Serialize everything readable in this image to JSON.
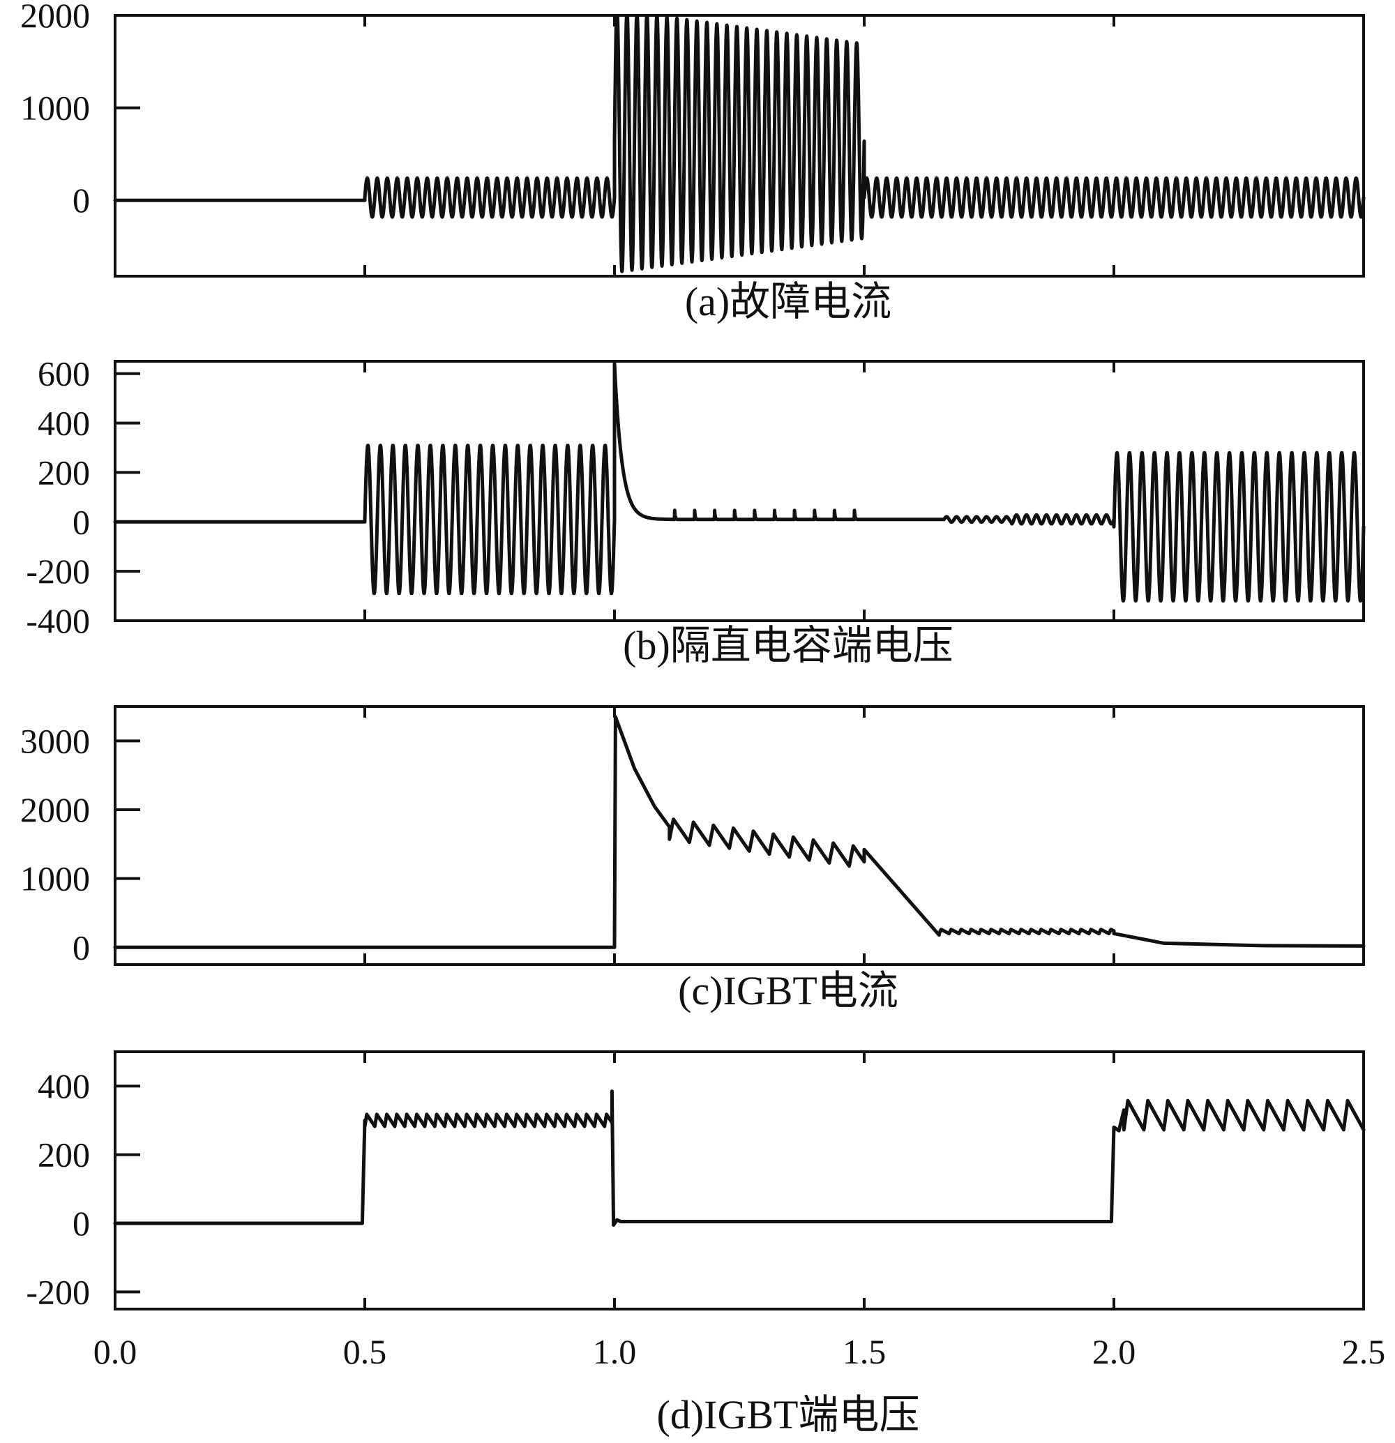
{
  "figure": {
    "xlim": [
      0.0,
      2.5
    ],
    "x_tick_labels": [
      "0.0",
      "0.5",
      "1.0",
      "1.5",
      "2.0",
      "2.5"
    ],
    "x_ticks": [
      0.0,
      0.5,
      1.0,
      1.5,
      2.0,
      2.5
    ]
  },
  "chart_data": [
    {
      "type": "line",
      "title": "(a)故障电流",
      "xlabel": "",
      "ylabel": "",
      "ylim": [
        -820,
        2000
      ],
      "y_ticks": [
        0,
        1000,
        2000
      ],
      "y_tick_labels": [
        "0",
        "1000",
        "2000"
      ],
      "series": [
        {
          "name": "故障电流",
          "segments": [
            {
              "type": "const",
              "t0": 0.0,
              "t1": 0.5,
              "value": 0
            },
            {
              "type": "osc",
              "t0": 0.5,
              "t1": 1.0,
              "freq": 50,
              "offset": 30,
              "amp0": 210,
              "amp1": 210
            },
            {
              "type": "osc",
              "t0": 1.0,
              "t1": 1.5,
              "freq": 50,
              "offset": 640,
              "amp0": 1420,
              "amp1": 1050
            },
            {
              "type": "osc",
              "t0": 1.5,
              "t1": 2.5,
              "freq": 50,
              "offset": 30,
              "amp0": 210,
              "amp1": 210
            }
          ]
        }
      ]
    },
    {
      "type": "line",
      "title": "(b)隔直电容端电压",
      "xlabel": "",
      "ylabel": "",
      "ylim": [
        -400,
        650
      ],
      "y_ticks": [
        -400,
        -200,
        0,
        200,
        400,
        600
      ],
      "y_tick_labels": [
        "-400",
        "-200",
        "0",
        "200",
        "400",
        "600"
      ],
      "series": [
        {
          "name": "隔直电容端电压",
          "segments": [
            {
              "type": "const",
              "t0": 0.0,
              "t1": 0.5,
              "value": 0
            },
            {
              "type": "osc",
              "t0": 0.5,
              "t1": 1.0,
              "freq": 40,
              "offset": 10,
              "amp0": 300,
              "amp1": 300
            },
            {
              "type": "decay",
              "t0": 1.0,
              "t1": 1.5,
              "from": 640,
              "to": 10,
              "tau": 0.015,
              "spike_every": 0.04,
              "spike_start": 0.12,
              "spike_height": 55
            },
            {
              "type": "ripple",
              "t0": 1.5,
              "t1": 2.0,
              "base": 10,
              "ripple_from": 1.66,
              "ripple_amp": 18,
              "freq": 50
            },
            {
              "type": "osc",
              "t0": 2.0,
              "t1": 2.5,
              "freq": 40,
              "offset": -20,
              "amp0": 300,
              "amp1": 300
            }
          ]
        }
      ]
    },
    {
      "type": "line",
      "title": "(c)IGBT电流",
      "xlabel": "",
      "ylabel": "",
      "ylim": [
        -250,
        3500
      ],
      "y_ticks": [
        0,
        1000,
        2000,
        3000
      ],
      "y_tick_labels": [
        "0",
        "1000",
        "2000",
        "3000"
      ],
      "series": [
        {
          "name": "IGBT电流",
          "segments": [
            {
              "type": "const",
              "t0": 0.0,
              "t1": 1.0,
              "value": 0
            },
            {
              "type": "points",
              "values": [
                [
                  1.0,
                  0
                ],
                [
                  1.002,
                  3350
                ],
                [
                  1.04,
                  2600
                ],
                [
                  1.08,
                  2050
                ],
                [
                  1.11,
                  1750
                ]
              ]
            },
            {
              "type": "saw",
              "t0": 1.11,
              "t1": 1.5,
              "from": 1720,
              "to": 1300,
              "period": 0.04,
              "amp": 300
            },
            {
              "type": "points",
              "values": [
                [
                  1.5,
                  1420
                ],
                [
                  1.65,
                  180
                ]
              ]
            },
            {
              "type": "saw",
              "t0": 1.65,
              "t1": 2.0,
              "from": 230,
              "to": 230,
              "period": 0.02,
              "amp": 60
            },
            {
              "type": "points",
              "values": [
                [
                  2.0,
                  200
                ],
                [
                  2.1,
                  60
                ],
                [
                  2.3,
                  25
                ],
                [
                  2.5,
                  20
                ]
              ]
            }
          ]
        }
      ]
    },
    {
      "type": "line",
      "title": "(d)IGBT端电压",
      "xlabel": "",
      "ylabel": "",
      "ylim": [
        -250,
        500
      ],
      "y_ticks": [
        -200,
        0,
        200,
        400
      ],
      "y_tick_labels": [
        "-200",
        "0",
        "200",
        "400"
      ],
      "series": [
        {
          "name": "IGBT端电压",
          "segments": [
            {
              "type": "const",
              "t0": 0.0,
              "t1": 0.495,
              "value": 0
            },
            {
              "type": "points",
              "values": [
                [
                  0.495,
                  0
                ],
                [
                  0.5,
                  300
                ]
              ]
            },
            {
              "type": "saw",
              "t0": 0.5,
              "t1": 0.995,
              "from": 300,
              "to": 300,
              "period": 0.02,
              "amp": 35
            },
            {
              "type": "points",
              "values": [
                [
                  0.995,
                  385
                ],
                [
                  0.998,
                  -5
                ],
                [
                  1.005,
                  10
                ],
                [
                  1.012,
                  5
                ]
              ]
            },
            {
              "type": "const",
              "t0": 1.012,
              "t1": 1.995,
              "value": 5
            },
            {
              "type": "points",
              "values": [
                [
                  1.995,
                  5
                ],
                [
                  2.0,
                  280
                ],
                [
                  2.01,
                  270
                ],
                [
                  2.02,
                  330
                ]
              ]
            },
            {
              "type": "saw",
              "t0": 2.02,
              "t1": 2.5,
              "from": 315,
              "to": 315,
              "period": 0.04,
              "amp": 85
            }
          ]
        }
      ]
    }
  ]
}
